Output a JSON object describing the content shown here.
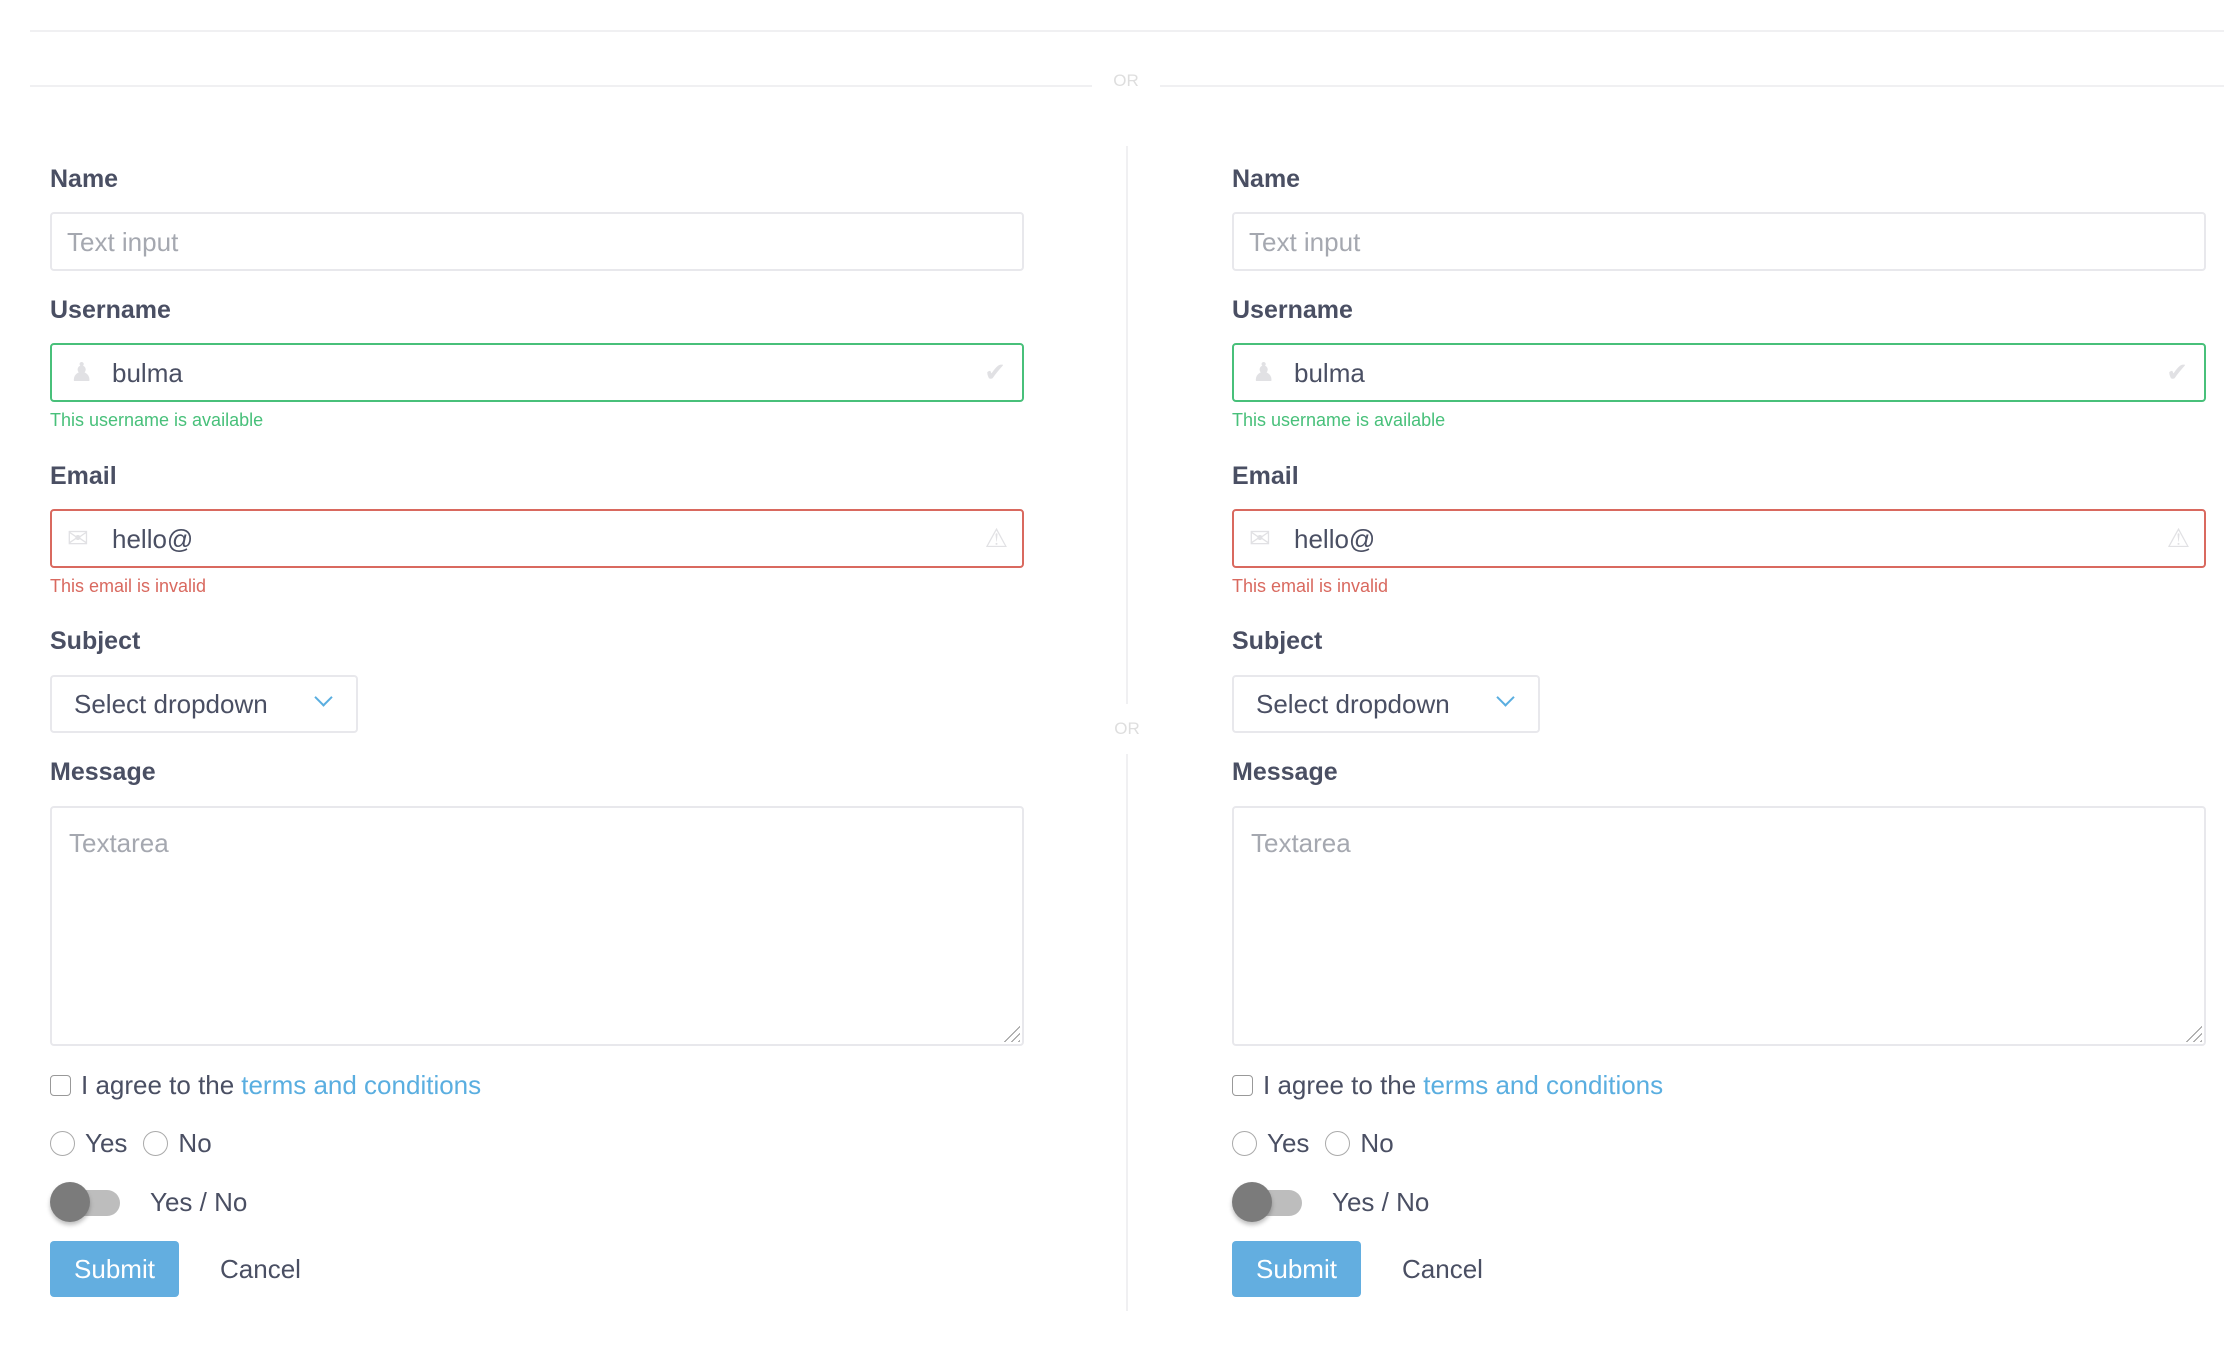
{
  "divider_or_label": "OR",
  "colors": {
    "success": "#48c07a",
    "danger": "#d9695f",
    "link": "#5aaee0",
    "primary": "#63aee0"
  },
  "forms": [
    {
      "name_label": "Name",
      "name_placeholder": "Text input",
      "username_label": "Username",
      "username_value": "bulma",
      "username_help": "This username is available",
      "email_label": "Email",
      "email_value": "hello@",
      "email_help": "This email is invalid",
      "subject_label": "Subject",
      "subject_value": "Select dropdown",
      "message_label": "Message",
      "message_placeholder": "Textarea",
      "agree_text": "I agree to the",
      "agree_link": "terms and conditions",
      "radio_yes": "Yes",
      "radio_no": "No",
      "toggle_label": "Yes / No",
      "toggle_on": false,
      "submit": "Submit",
      "cancel": "Cancel"
    },
    {
      "name_label": "Name",
      "name_placeholder": "Text input",
      "username_label": "Username",
      "username_value": "bulma",
      "username_help": "This username is available",
      "email_label": "Email",
      "email_value": "hello@",
      "email_help": "This email is invalid",
      "subject_label": "Subject",
      "subject_value": "Select dropdown",
      "message_label": "Message",
      "message_placeholder": "Textarea",
      "agree_text": "I agree to the",
      "agree_link": "terms and conditions",
      "radio_yes": "Yes",
      "radio_no": "No",
      "toggle_label": "Yes / No",
      "toggle_on": false,
      "submit": "Submit",
      "cancel": "Cancel"
    }
  ]
}
